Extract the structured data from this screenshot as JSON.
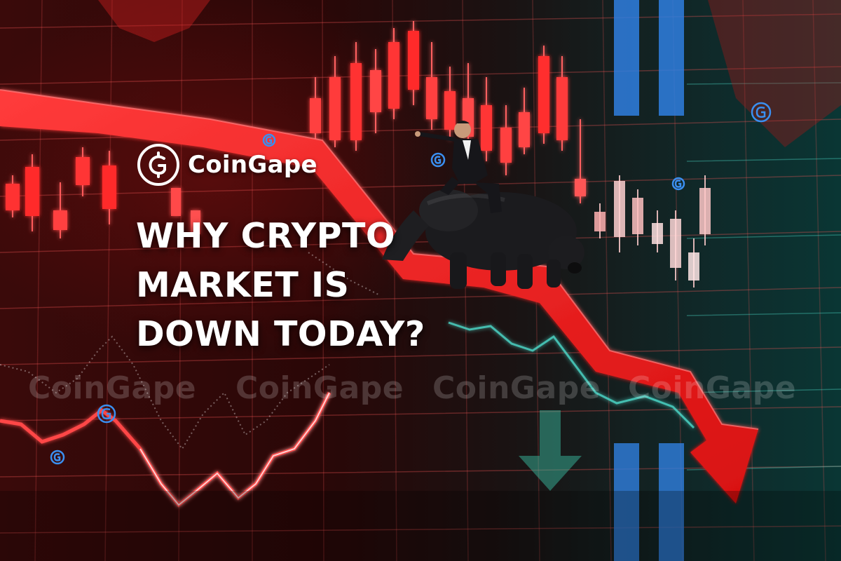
{
  "brand": {
    "name": "CoinGape",
    "logo_icon": "coingape-logo-icon"
  },
  "headline": {
    "line1": "WHY CRYPTO",
    "line2": "MARKET IS",
    "line3": "DOWN TODAY?"
  },
  "watermark": {
    "text": "CoinGape"
  },
  "scene": {
    "figure": "businessman-riding-bear",
    "trend": "downtrend-arrow",
    "colors": {
      "bearish": "#ff2a2a",
      "bullish_cyan": "#4fe0d0",
      "bar_blue": "#2f7fe0"
    }
  }
}
